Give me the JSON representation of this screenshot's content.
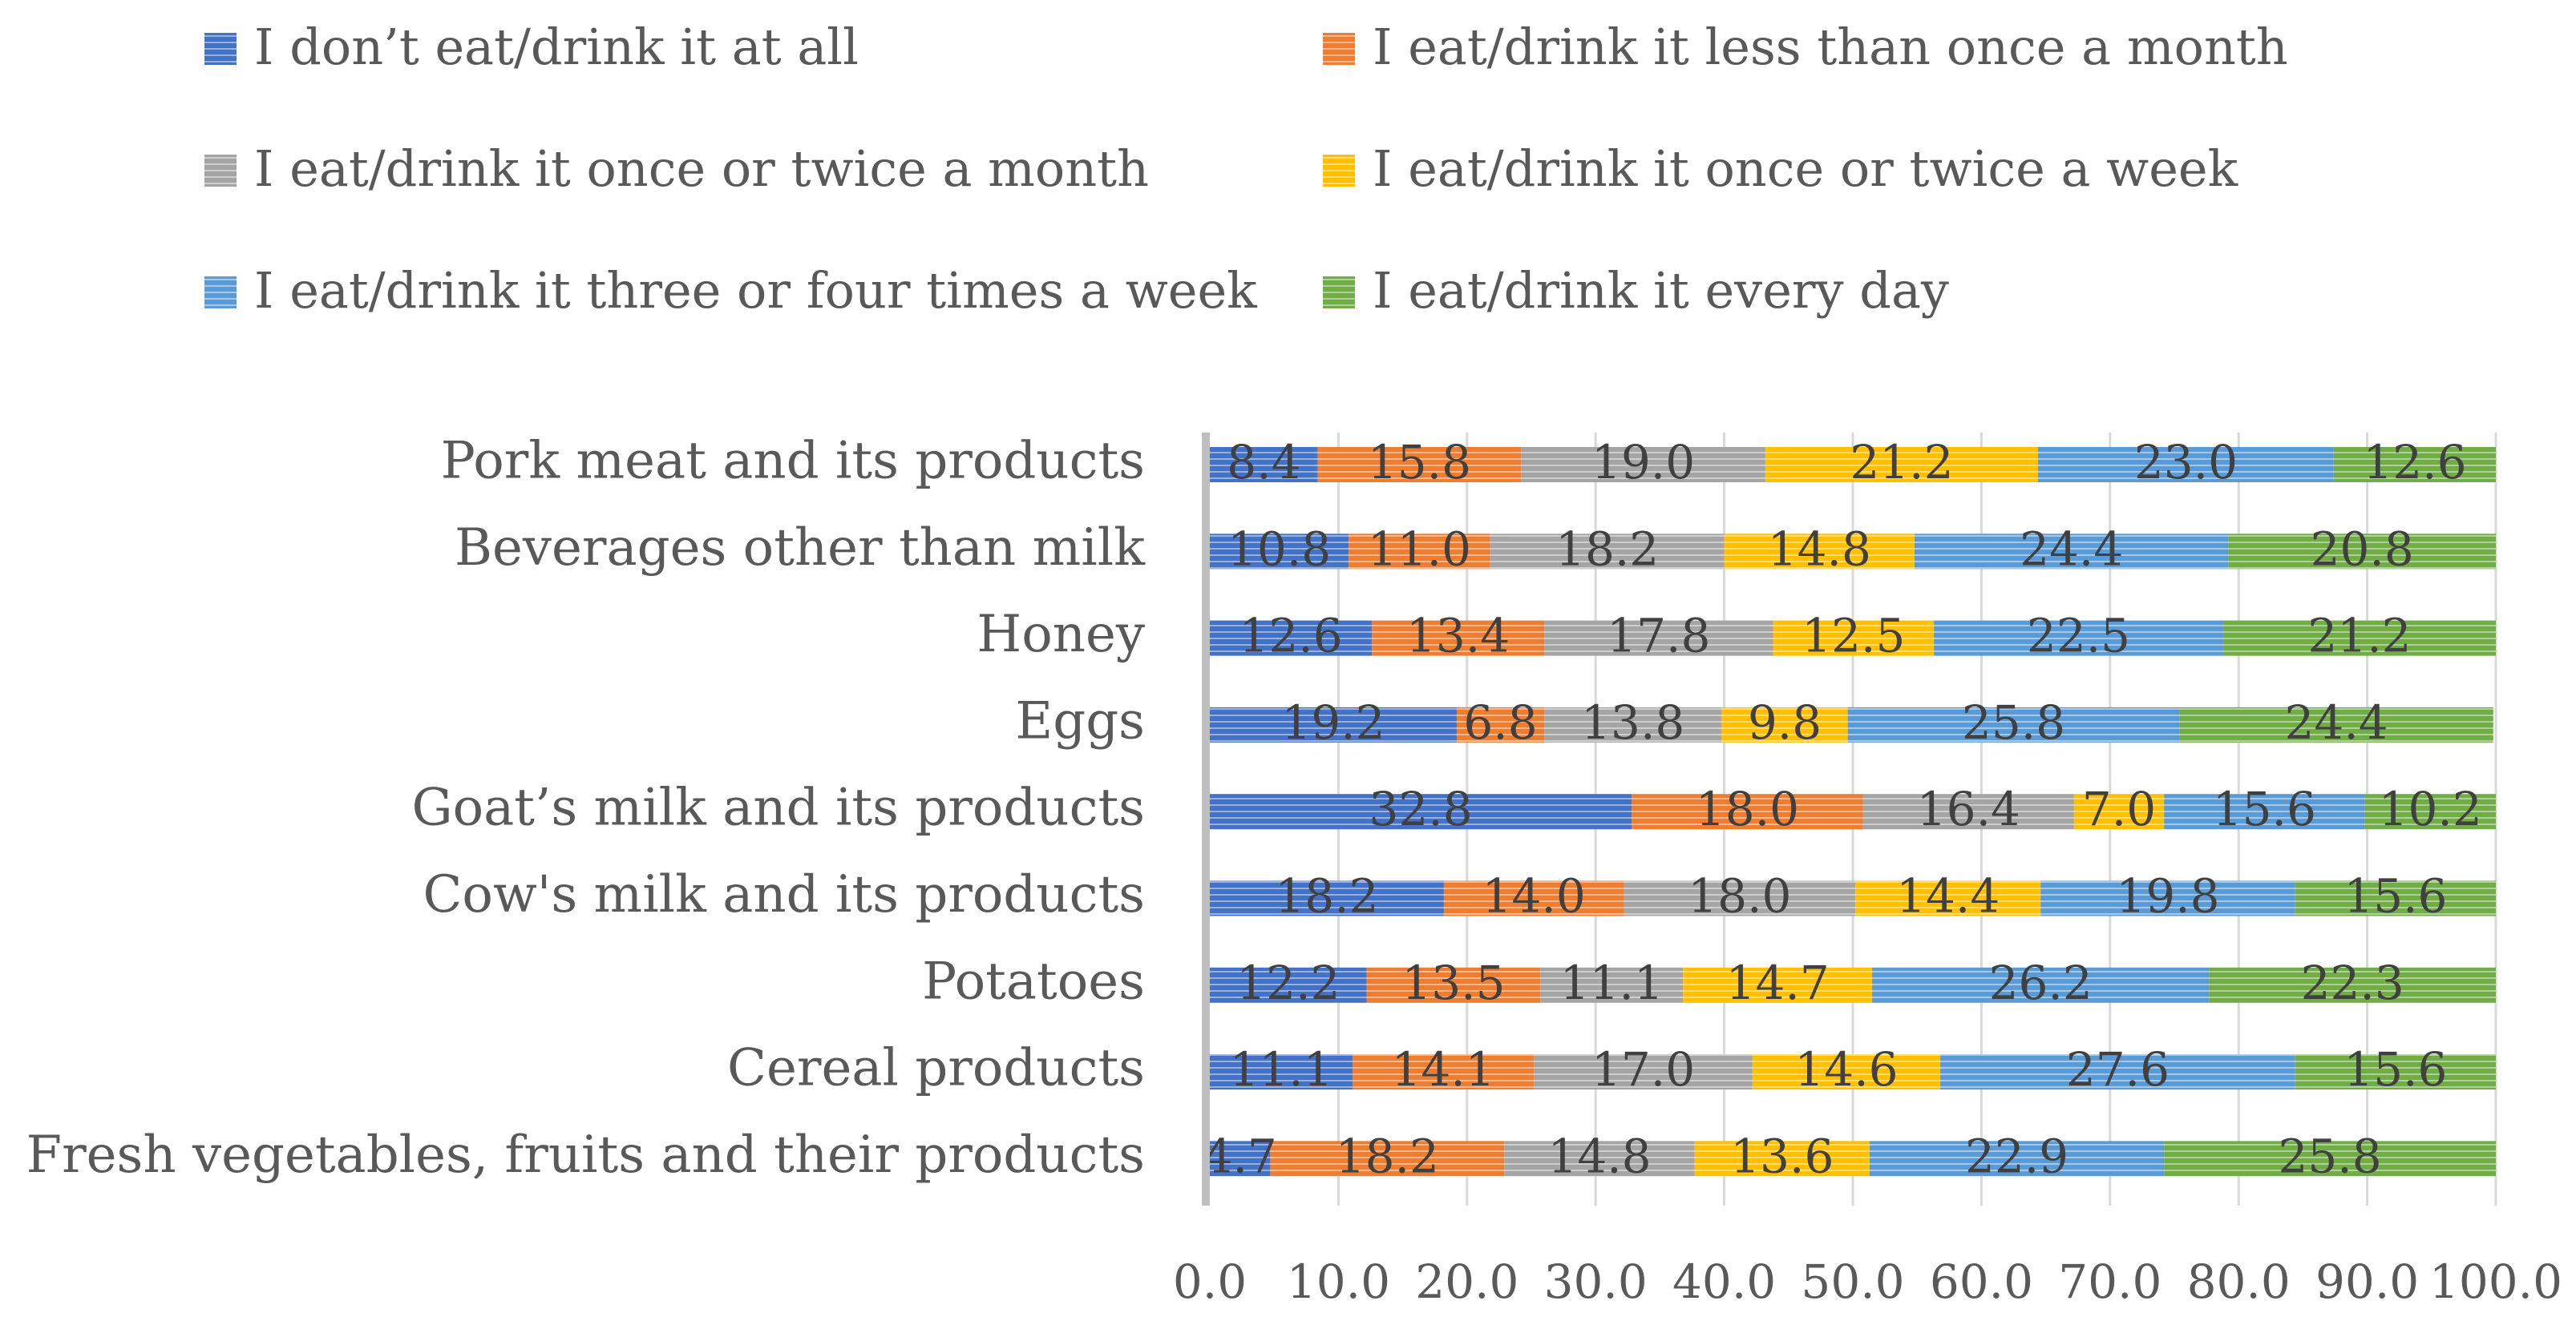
{
  "chart_data": {
    "type": "bar",
    "orientation": "horizontal",
    "stacked": true,
    "title": "",
    "xlabel": "",
    "ylabel": "",
    "xlim": [
      0,
      100
    ],
    "xticks": [
      "0.0",
      "10.0",
      "20.0",
      "30.0",
      "40.0",
      "50.0",
      "60.0",
      "70.0",
      "80.0",
      "90.0",
      "100.0"
    ],
    "grid": true,
    "legend_position": "top",
    "categories": [
      "Pork meat and its products",
      "Beverages other than milk",
      "Honey",
      "Eggs",
      "Goat’s milk and its products",
      "Cow's milk and its products",
      "Potatoes",
      "Cereal products",
      "Fresh vegetables, fruits and their products"
    ],
    "series": [
      {
        "name": "I don’t eat/drink it at all",
        "color": "#4472c4",
        "values": [
          8.4,
          10.8,
          12.6,
          19.2,
          32.8,
          18.2,
          12.2,
          11.1,
          4.7
        ],
        "labels": [
          "8.4",
          "10.8",
          "12.6",
          "19.2",
          "32.8",
          "18.2",
          "12.2",
          "11.1",
          "4.7"
        ]
      },
      {
        "name": " I eat/drink it less than once a month",
        "color": "#ed7d31",
        "values": [
          15.8,
          11.0,
          13.4,
          6.8,
          18.0,
          14.0,
          13.5,
          14.1,
          18.2
        ],
        "labels": [
          "15.8",
          "11.0",
          "13.4",
          "6.8",
          "18.0",
          "14.0",
          "13.5",
          "14.1",
          "18.2"
        ]
      },
      {
        "name": "I eat/drink it once or twice a month",
        "color": "#a5a5a5",
        "values": [
          19.0,
          18.2,
          17.8,
          13.8,
          16.4,
          18.0,
          11.1,
          17.0,
          14.8
        ],
        "labels": [
          "19.0",
          "18.2",
          "17.8",
          "13.8",
          "16.4",
          "18.0",
          "11.1",
          "17.0",
          "14.8"
        ]
      },
      {
        "name": "I eat/drink it once or twice a week",
        "color": "#ffc000",
        "values": [
          21.2,
          14.8,
          12.5,
          9.8,
          7.0,
          14.4,
          14.7,
          14.6,
          13.6
        ],
        "labels": [
          "21.2",
          "14.8",
          "12.5",
          "9.8",
          "7.0",
          "14.4",
          "14.7",
          "14.6",
          "13.6"
        ]
      },
      {
        "name": "I eat/drink it three or four times a week",
        "color": "#5b9bd5",
        "values": [
          23.0,
          24.4,
          22.5,
          25.8,
          15.6,
          19.8,
          26.2,
          27.6,
          22.9
        ],
        "labels": [
          "23.0",
          "24.4",
          "22.5",
          "25.8",
          "15.6",
          "19.8",
          "26.2",
          "27.6",
          "22.9"
        ]
      },
      {
        "name": "I eat/drink it every day",
        "color": "#70ad47",
        "values": [
          12.6,
          20.8,
          21.2,
          24.4,
          10.2,
          15.6,
          22.3,
          15.6,
          25.8
        ],
        "labels": [
          "12.6",
          "20.8",
          "21.2",
          "24.4",
          "10.2",
          "15.6",
          "22.3",
          "15.6",
          "25.8"
        ]
      }
    ]
  }
}
